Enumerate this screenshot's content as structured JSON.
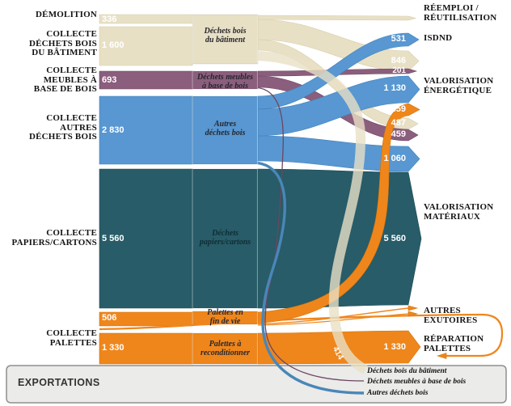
{
  "chart_data": {
    "type": "sankey",
    "title": "",
    "colors": {
      "beige": "#e8e0c5",
      "purple": "#8b5e7d",
      "blue": "#5897d1",
      "teal": "#275c68",
      "orange": "#ef861b",
      "export_box_bg": "#ebebe9",
      "export_box_border": "#8f8f8d"
    },
    "sources": [
      {
        "name": "DÉMOLITION",
        "lines": [
          "DÉMOLITION"
        ],
        "value": 336,
        "flow": "336",
        "color": "beige"
      },
      {
        "name": "COLLECTE DÉCHETS BOIS DU BÂTIMENT",
        "lines": [
          "COLLECTE",
          "DÉCHETS BOIS",
          "DU BÂTIMENT"
        ],
        "value": 1600,
        "flow": "1 600",
        "color": "beige"
      },
      {
        "name": "COLLECTE MEUBLES À BASE DE BOIS",
        "lines": [
          "COLLECTE",
          "MEUBLES À",
          "BASE DE BOIS"
        ],
        "value": 693,
        "flow": "693",
        "color": "purple"
      },
      {
        "name": "COLLECTE AUTRES DÉCHETS BOIS",
        "lines": [
          "COLLECTE",
          "AUTRES",
          "DÉCHETS BOIS"
        ],
        "value": 2830,
        "flow": "2 830",
        "color": "blue"
      },
      {
        "name": "COLLECTE PAPIERS/CARTONS",
        "lines": [
          "COLLECTE",
          "PAPIERS/CARTONS"
        ],
        "value": 5560,
        "flow": "5 560",
        "color": "teal"
      },
      {
        "name": "COLLECTE PALETTES",
        "lines": [
          "COLLECTE",
          "PALETTES"
        ],
        "values": [
          506,
          1330
        ],
        "flows": [
          "506",
          "1 330"
        ],
        "color": "orange"
      }
    ],
    "middle_nodes": [
      {
        "name": "Déchets bois du bâtiment",
        "lines": [
          "Déchets bois",
          "du bâtiment"
        ],
        "color": "beige"
      },
      {
        "name": "Déchets meubles à base de bois",
        "lines": [
          "Déchets meubles",
          "à base de bois"
        ],
        "color": "purple"
      },
      {
        "name": "Autres déchets bois",
        "lines": [
          "Autres",
          "déchets bois"
        ],
        "color": "blue"
      },
      {
        "name": "Déchets papiers/cartons",
        "lines": [
          "Déchets",
          "papiers/cartons"
        ],
        "color": "teal"
      },
      {
        "name": "Palettes en fin de vie",
        "lines": [
          "Palettes en",
          "fin de vie"
        ],
        "color": "orange"
      },
      {
        "name": "Palettes à reconditionner",
        "lines": [
          "Palettes à",
          "reconditionner"
        ],
        "color": "orange"
      }
    ],
    "destinations": [
      {
        "name": "RÉEMPLOI / RÉUTILISATION",
        "lines": [
          "RÉEMPLOI /",
          "RÉUTILISATION"
        ]
      },
      {
        "name": "ISDND",
        "lines": [
          "ISDND"
        ]
      },
      {
        "name": "VALORISATION ÉNERGÉTIQUE",
        "lines": [
          "VALORISATION",
          "ÉNERGÉTIQUE"
        ]
      },
      {
        "name": "VALORISATION MATÉRIAUX",
        "lines": [
          "VALORISATION",
          "MATÉRIAUX"
        ]
      },
      {
        "name": "AUTRES EXUTOIRES",
        "lines": [
          "AUTRES",
          "EXUTOIRES"
        ]
      },
      {
        "name": "RÉPARATION PALETTES",
        "lines": [
          "RÉPARATION",
          "PALETTES"
        ]
      }
    ],
    "right_flow_labels": [
      {
        "display": "531"
      },
      {
        "display": "846"
      },
      {
        "display": "201"
      },
      {
        "display": "1 130"
      },
      {
        "display": "459"
      },
      {
        "display": "487"
      },
      {
        "display": "459"
      },
      {
        "display": "1 060"
      },
      {
        "display": "5 560"
      },
      {
        "display": "1 330"
      }
    ],
    "export_flow_label": "414",
    "links": [
      {
        "from": "DÉMOLITION",
        "to": "Déchets bois du bâtiment",
        "value": 336,
        "display": "336",
        "color": "beige"
      },
      {
        "from": "COLLECTE DÉCHETS BOIS DU BÂTIMENT",
        "to": "Déchets bois du bâtiment",
        "value": 1600,
        "display": "1 600",
        "color": "beige"
      },
      {
        "from": "COLLECTE MEUBLES À BASE DE BOIS",
        "to": "Déchets meubles à base de bois",
        "value": 693,
        "display": "693",
        "color": "purple"
      },
      {
        "from": "COLLECTE AUTRES DÉCHETS BOIS",
        "to": "Autres déchets bois",
        "value": 2830,
        "display": "2 830",
        "color": "blue"
      },
      {
        "from": "COLLECTE PAPIERS/CARTONS",
        "to": "Déchets papiers/cartons",
        "value": 5560,
        "display": "5 560",
        "color": "teal"
      },
      {
        "from": "COLLECTE PALETTES",
        "to": "Palettes en fin de vie",
        "value": 506,
        "display": "506",
        "color": "orange"
      },
      {
        "from": "COLLECTE PALETTES",
        "to": "Palettes à reconditionner",
        "value": 1330,
        "display": "1 330",
        "color": "orange"
      },
      {
        "from": "Déchets bois du bâtiment",
        "to": "RÉEMPLOI / RÉUTILISATION",
        "value": null,
        "display": "",
        "color": "beige"
      },
      {
        "from": "Déchets bois du bâtiment",
        "to": "VALORISATION ÉNERGÉTIQUE",
        "value": 846,
        "display": "846",
        "color": "beige"
      },
      {
        "from": "Déchets bois du bâtiment",
        "to": "VALORISATION MATÉRIAUX",
        "value": 487,
        "display": "487",
        "color": "beige"
      },
      {
        "from": "Déchets bois du bâtiment",
        "to": "EXPORTATIONS",
        "value": 414,
        "display": "414",
        "color": "beige"
      },
      {
        "from": "Déchets meubles à base de bois",
        "to": "VALORISATION ÉNERGÉTIQUE",
        "value": 201,
        "display": "201",
        "color": "purple"
      },
      {
        "from": "Déchets meubles à base de bois",
        "to": "VALORISATION MATÉRIAUX",
        "value": 459,
        "display": "459",
        "color": "purple"
      },
      {
        "from": "Déchets meubles à base de bois",
        "to": "EXPORTATIONS",
        "value": null,
        "display": "",
        "color": "purple"
      },
      {
        "from": "Autres déchets bois",
        "to": "ISDND",
        "value": 531,
        "display": "531",
        "color": "blue"
      },
      {
        "from": "Autres déchets bois",
        "to": "VALORISATION ÉNERGÉTIQUE",
        "value": 1130,
        "display": "1 130",
        "color": "blue"
      },
      {
        "from": "Autres déchets bois",
        "to": "VALORISATION MATÉRIAUX",
        "value": 1060,
        "display": "1 060",
        "color": "blue"
      },
      {
        "from": "Autres déchets bois",
        "to": "EXPORTATIONS",
        "value": null,
        "display": "",
        "color": "blue"
      },
      {
        "from": "Déchets papiers/cartons",
        "to": "VALORISATION MATÉRIAUX",
        "value": 5560,
        "display": "5 560",
        "color": "teal"
      },
      {
        "from": "Palettes en fin de vie",
        "to": "VALORISATION ÉNERGÉTIQUE",
        "value": 459,
        "display": "459",
        "color": "orange"
      },
      {
        "from": "Palettes en fin de vie",
        "to": "AUTRES EXUTOIRES",
        "value": null,
        "display": "",
        "color": "orange"
      },
      {
        "from": "Palettes à reconditionner",
        "to": "RÉPARATION PALETTES",
        "value": 1330,
        "display": "1 330",
        "color": "orange"
      },
      {
        "from": "RÉPARATION PALETTES",
        "to": "COLLECTE PALETTES",
        "value": null,
        "display": "",
        "color": "orange"
      }
    ]
  },
  "export_box": {
    "title": "EXPORTATIONS",
    "legend": [
      {
        "label": "Déchets bois du bâtiment",
        "color": "beige"
      },
      {
        "label": "Déchets meubles à base de bois",
        "color": "purple"
      },
      {
        "label": "Autres déchets bois",
        "color": "blue"
      }
    ]
  }
}
